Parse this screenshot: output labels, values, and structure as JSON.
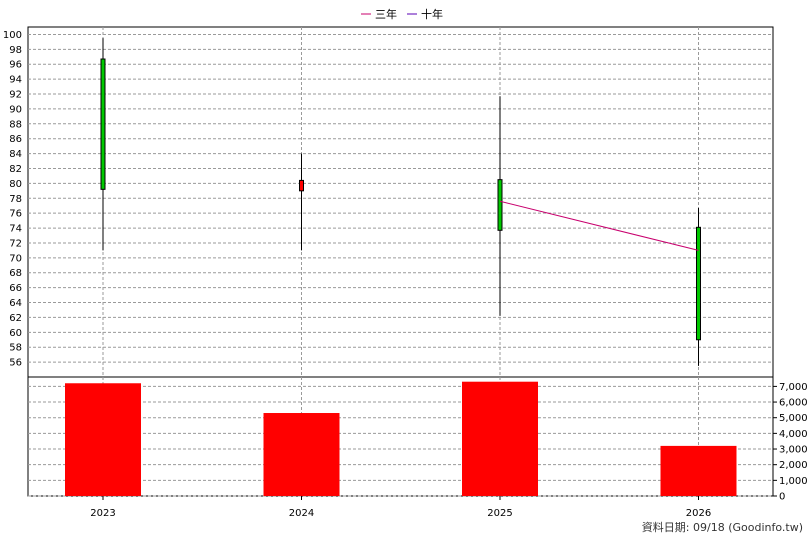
{
  "legend": [
    {
      "label": "三年",
      "color": "#c8006e"
    },
    {
      "label": "十年",
      "color": "#5a00b4"
    }
  ],
  "footer": "資料日期: 09/18  (Goodinfo.tw)",
  "chart_data": [
    {
      "type": "candlestick",
      "categories": [
        "2023",
        "2024",
        "2025",
        "2026"
      ],
      "ylim": [
        54,
        101
      ],
      "y_ticks": [
        56,
        58,
        60,
        62,
        64,
        66,
        68,
        70,
        72,
        74,
        76,
        78,
        80,
        82,
        84,
        86,
        88,
        90,
        92,
        94,
        96,
        98,
        100
      ],
      "grid": true,
      "legend_position": "top-center",
      "candles": [
        {
          "year": "2023",
          "open": 79.2,
          "close": 96.7,
          "high": 99.5,
          "low": 71.0,
          "color": "#00c800"
        },
        {
          "year": "2024",
          "open": 80.4,
          "close": 79.0,
          "high": 84.0,
          "low": 71.0,
          "color": "#ff0000"
        },
        {
          "year": "2025",
          "open": 73.7,
          "close": 80.5,
          "high": 91.7,
          "low": 62.2,
          "color": "#00c800"
        },
        {
          "year": "2026",
          "open": 59.0,
          "close": 74.1,
          "high": 76.7,
          "low": 55.5,
          "color": "#00c800"
        }
      ],
      "series": [
        {
          "name": "三年",
          "color": "#c8006e",
          "points": [
            {
              "x": "2025",
              "y": 77.6
            },
            {
              "x": "2026",
              "y": 71.0
            }
          ]
        },
        {
          "name": "十年",
          "color": "#5a00b4",
          "points": []
        }
      ]
    },
    {
      "type": "bar",
      "categories": [
        "2023",
        "2024",
        "2025",
        "2026"
      ],
      "values": [
        7200,
        5300,
        7300,
        3200
      ],
      "ylim": [
        0,
        7600
      ],
      "y_ticks": [
        0,
        1000,
        2000,
        3000,
        4000,
        5000,
        6000,
        7000
      ],
      "y_tick_labels": [
        "0",
        "1,000",
        "2,000",
        "3,000",
        "4,000",
        "5,000",
        "6,000",
        "7,000"
      ],
      "color": "#ff0000"
    }
  ]
}
